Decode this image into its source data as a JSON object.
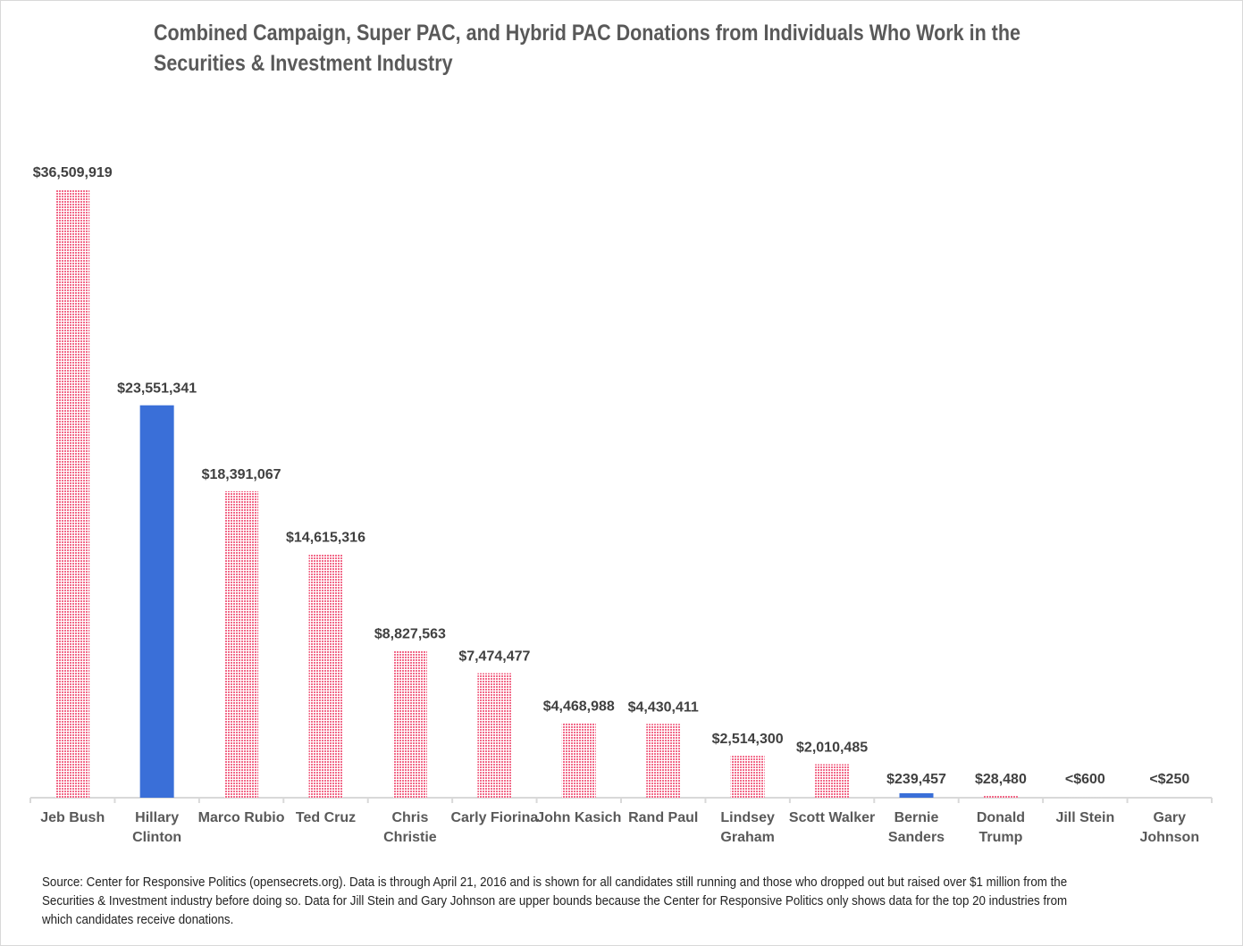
{
  "chart_data": {
    "type": "bar",
    "title": "Combined Campaign, Super PAC, and Hybrid PAC Donations from Individuals Who Work in the Securities & Investment Industry",
    "title_lines": [
      "Combined Campaign, Super PAC, and Hybrid PAC Donations from Individuals Who Work in the",
      "Securities & Investment Industry"
    ],
    "categories": [
      [
        "Jeb Bush"
      ],
      [
        "Hillary",
        "Clinton"
      ],
      [
        "Marco Rubio"
      ],
      [
        "Ted Cruz"
      ],
      [
        "Chris",
        "Christie"
      ],
      [
        "Carly Fiorina"
      ],
      [
        "John Kasich"
      ],
      [
        "Rand Paul"
      ],
      [
        "Lindsey",
        "Graham"
      ],
      [
        "Scott Walker"
      ],
      [
        "Bernie",
        "Sanders"
      ],
      [
        "Donald",
        "Trump"
      ],
      [
        "Jill Stein"
      ],
      [
        "Gary",
        "Johnson"
      ]
    ],
    "values": [
      36509919,
      23551341,
      18391067,
      14615316,
      8827563,
      7474477,
      4468988,
      4430411,
      2514300,
      2010485,
      239457,
      28480,
      600,
      250
    ],
    "data_labels": [
      "$36,509,919",
      "$23,551,341",
      "$18,391,067",
      "$14,615,316",
      "$8,827,563",
      "$7,474,477",
      "$4,468,988",
      "$4,430,411",
      "$2,514,300",
      "$2,010,485",
      "$239,457",
      "$28,480",
      "<$600",
      "<$250"
    ],
    "party": [
      "R",
      "D",
      "R",
      "R",
      "R",
      "R",
      "R",
      "R",
      "R",
      "R",
      "D",
      "R",
      "G",
      "L"
    ],
    "colors": {
      "R": "#f26b8a",
      "D": "#3a6fd8",
      "G": "#f26b8a",
      "L": "#f26b8a"
    },
    "fill_style": {
      "R": "dotted-pattern",
      "D": "solid"
    },
    "ylim": [
      0,
      36509919
    ],
    "xlabel": "",
    "ylabel": "",
    "grid": false,
    "y_axis_visible": false
  },
  "source": "Source: Center for Responsive Politics (opensecrets.org).  Data is through April 21, 2016 and is shown for all candidates still running and those who dropped out but raised over $1 million from the Securities & Investment industry before doing so.  Data for Jill Stein and Gary Johnson are upper bounds because the Center for Responsive Politics only shows data for the top 20 industries from which candidates receive donations."
}
